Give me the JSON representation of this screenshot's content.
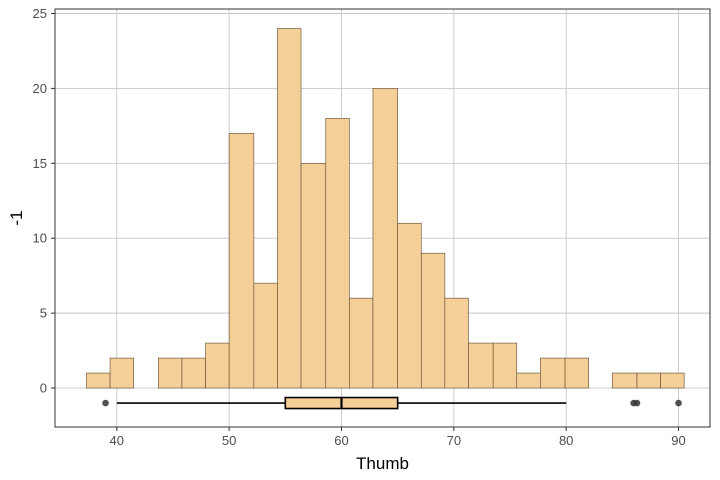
{
  "chart_data": {
    "type": "histogram",
    "title": "",
    "xlabel": "Thumb",
    "ylabel": "-1",
    "xlim": [
      34.5,
      92.8
    ],
    "ylim": [
      -2.6,
      25.3
    ],
    "xticks": [
      40,
      50,
      60,
      70,
      80,
      90
    ],
    "yticks": [
      0,
      5,
      10,
      15,
      20,
      25
    ],
    "grid": true,
    "bar_fill": "#f5cf98",
    "bar_stroke": "#5a4a30",
    "bins": [
      {
        "x0": 37.3,
        "x1": 39.4,
        "count": 1
      },
      {
        "x0": 39.4,
        "x1": 41.5,
        "count": 2
      },
      {
        "x0": 41.5,
        "x1": 43.7,
        "count": 0
      },
      {
        "x0": 43.7,
        "x1": 45.8,
        "count": 2
      },
      {
        "x0": 45.8,
        "x1": 47.9,
        "count": 2
      },
      {
        "x0": 47.9,
        "x1": 50.0,
        "count": 3
      },
      {
        "x0": 50.0,
        "x1": 52.2,
        "count": 17
      },
      {
        "x0": 52.2,
        "x1": 54.3,
        "count": 7
      },
      {
        "x0": 54.3,
        "x1": 56.4,
        "count": 24
      },
      {
        "x0": 56.4,
        "x1": 58.6,
        "count": 15
      },
      {
        "x0": 58.6,
        "x1": 60.7,
        "count": 18
      },
      {
        "x0": 60.7,
        "x1": 62.8,
        "count": 6
      },
      {
        "x0": 62.8,
        "x1": 65.0,
        "count": 20
      },
      {
        "x0": 65.0,
        "x1": 67.1,
        "count": 11
      },
      {
        "x0": 67.1,
        "x1": 69.2,
        "count": 9
      },
      {
        "x0": 69.2,
        "x1": 71.3,
        "count": 6
      },
      {
        "x0": 71.3,
        "x1": 73.5,
        "count": 3
      },
      {
        "x0": 73.5,
        "x1": 75.6,
        "count": 3
      },
      {
        "x0": 75.6,
        "x1": 77.7,
        "count": 1
      },
      {
        "x0": 77.7,
        "x1": 79.9,
        "count": 2
      },
      {
        "x0": 79.9,
        "x1": 82.0,
        "count": 2
      },
      {
        "x0": 82.0,
        "x1": 84.1,
        "count": 0
      },
      {
        "x0": 84.1,
        "x1": 86.3,
        "count": 1
      },
      {
        "x0": 86.3,
        "x1": 88.4,
        "count": 1
      },
      {
        "x0": 88.4,
        "x1": 90.5,
        "count": 1
      }
    ],
    "boxplot": {
      "y": -1,
      "whisker_low": 40,
      "q1": 55,
      "median": 60,
      "q3": 65,
      "whisker_high": 80,
      "outliers": [
        39,
        86,
        86.3,
        90
      ],
      "fill": "#f5cf98"
    }
  }
}
